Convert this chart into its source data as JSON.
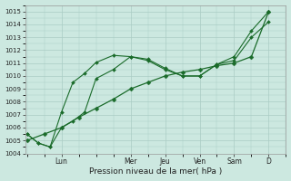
{
  "xlabel": "Pression niveau de la mer( hPa )",
  "bg_color": "#cce8e0",
  "grid_color": "#aaccc4",
  "line_color": "#1a6b2a",
  "ylim": [
    1004,
    1015.5
  ],
  "yticks": [
    1004,
    1005,
    1006,
    1007,
    1008,
    1009,
    1010,
    1011,
    1012,
    1013,
    1014,
    1015
  ],
  "day_labels": [
    "Lun",
    "Mer",
    "Jeu",
    "Ven",
    "Sam",
    "D"
  ],
  "day_positions": [
    1.0,
    3.0,
    4.0,
    5.0,
    6.0,
    7.0
  ],
  "xlim": [
    -0.05,
    7.5
  ],
  "series1_x": [
    0,
    0.33,
    0.67,
    1.0,
    1.33,
    1.67,
    2.0,
    2.5,
    3.0,
    3.5,
    4.0,
    4.5,
    5.0,
    5.5,
    6.0,
    6.5,
    7.0
  ],
  "series1_y": [
    1005.5,
    1004.8,
    1004.5,
    1007.2,
    1009.5,
    1010.2,
    1011.05,
    1011.6,
    1011.5,
    1011.3,
    1010.6,
    1010.0,
    1010.0,
    1010.9,
    1011.2,
    1013.0,
    1014.2
  ],
  "series2_x": [
    0,
    0.33,
    0.67,
    1.0,
    1.33,
    1.67,
    2.0,
    2.5,
    3.0,
    3.5,
    4.0,
    4.5,
    5.0,
    5.5,
    6.0,
    6.5,
    7.0
  ],
  "series2_y": [
    1005.5,
    1004.8,
    1004.5,
    1006.0,
    1006.5,
    1007.2,
    1009.8,
    1010.5,
    1011.5,
    1011.2,
    1010.5,
    1010.0,
    1010.0,
    1010.9,
    1011.5,
    1013.5,
    1015.0
  ],
  "series3_x": [
    0,
    0.5,
    1.0,
    1.5,
    2.0,
    2.5,
    3.0,
    3.5,
    4.0,
    4.5,
    5.0,
    5.5,
    6.0,
    6.5,
    7.0
  ],
  "series3_y": [
    1005.0,
    1005.5,
    1006.0,
    1006.8,
    1007.5,
    1008.2,
    1009.0,
    1009.5,
    1010.0,
    1010.3,
    1010.5,
    1010.8,
    1011.0,
    1011.5,
    1015.0
  ]
}
